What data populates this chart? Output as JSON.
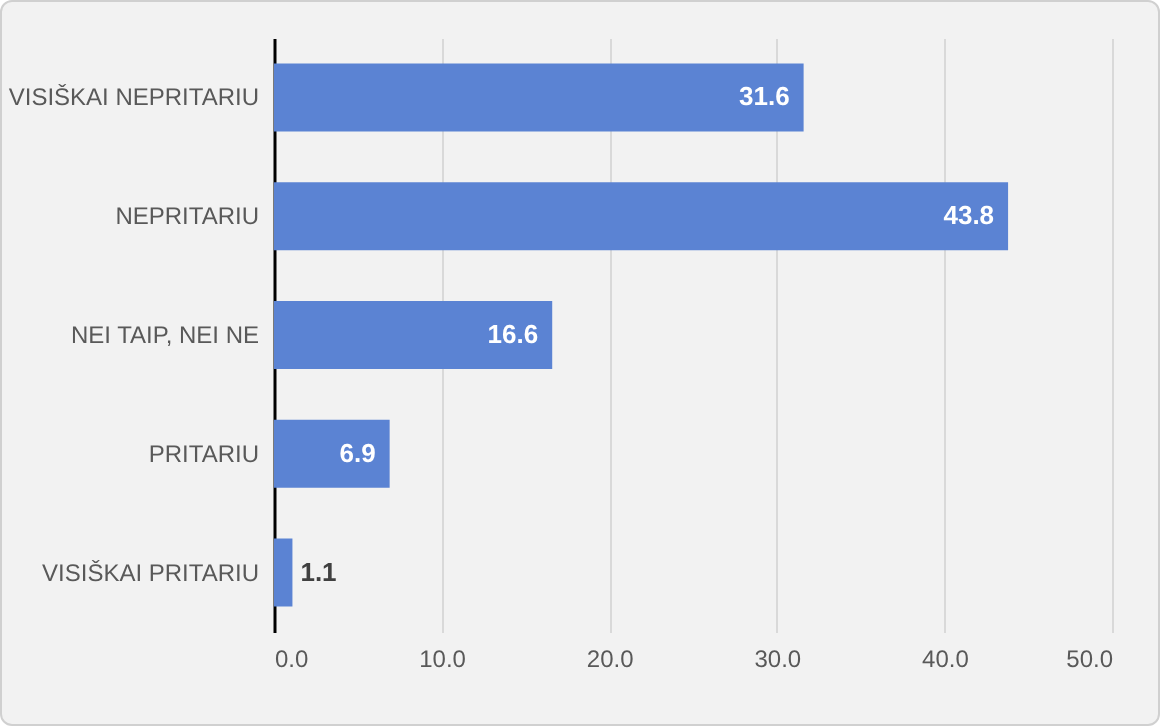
{
  "chart_data": {
    "type": "bar",
    "orientation": "horizontal",
    "categories": [
      "VISIŠKAI NEPRITARIU",
      "NEPRITARIU",
      "NEI TAIP, NEI NE",
      "PRITARIU",
      "VISIŠKAI PRITARIU"
    ],
    "values": [
      31.6,
      43.8,
      16.6,
      6.9,
      1.1
    ],
    "color": "#5b83d3",
    "data_labels": true,
    "grid": "x",
    "xlim": [
      0,
      50
    ],
    "xticks": [
      {
        "value": 0,
        "label": "0.0"
      },
      {
        "value": 10,
        "label": "10.0"
      },
      {
        "value": 20,
        "label": "20.0"
      },
      {
        "value": 30,
        "label": "30.0"
      },
      {
        "value": 40,
        "label": "40.0"
      },
      {
        "value": 50,
        "label": "50.0"
      }
    ]
  }
}
